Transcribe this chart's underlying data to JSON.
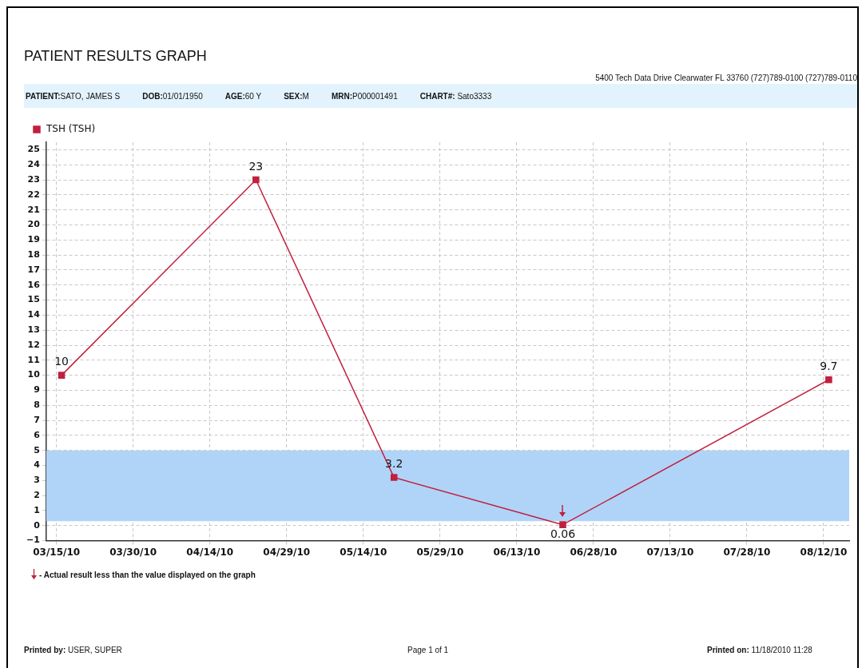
{
  "chart_data": {
    "type": "line",
    "title": "PATIENT RESULTS GRAPH",
    "x": [
      "2010-03-16",
      "2010-04-23",
      "2010-05-20",
      "2010-06-22",
      "2010-08-13"
    ],
    "series": [
      {
        "name": "TSH (TSH)",
        "color": "#c0203f",
        "values": [
          10,
          23,
          3.2,
          0.06,
          9.7
        ]
      }
    ],
    "xlim": [
      "2010-03-13",
      "2010-08-17"
    ],
    "xticks": [
      {
        "value": "2010-03-15",
        "label": "03/15/10"
      },
      {
        "value": "2010-03-30",
        "label": "03/30/10"
      },
      {
        "value": "2010-04-14",
        "label": "04/14/10"
      },
      {
        "value": "2010-04-29",
        "label": "04/29/10"
      },
      {
        "value": "2010-05-14",
        "label": "05/14/10"
      },
      {
        "value": "2010-05-29",
        "label": "05/29/10"
      },
      {
        "value": "2010-06-13",
        "label": "06/13/10"
      },
      {
        "value": "2010-06-28",
        "label": "06/28/10"
      },
      {
        "value": "2010-07-13",
        "label": "07/13/10"
      },
      {
        "value": "2010-07-28",
        "label": "07/28/10"
      },
      {
        "value": "2010-08-12",
        "label": "08/12/10"
      }
    ],
    "ylim": [
      -1,
      25.5
    ],
    "yticks": [
      -1,
      0,
      1,
      2,
      3,
      4,
      5,
      6,
      7,
      8,
      9,
      10,
      11,
      12,
      13,
      14,
      15,
      16,
      17,
      18,
      19,
      20,
      21,
      22,
      23,
      24,
      25
    ],
    "bands": [
      {
        "axis": "y",
        "from": 0.3,
        "to": 5,
        "color": "#b0d4f8"
      }
    ],
    "data_labels": true,
    "grid": true,
    "legend": "top left",
    "marker": "square",
    "line_style": "solid",
    "annotations": [
      "5400 Tech Data Drive Clearwater FL 33760 (727)789-0100 (727)789-0110",
      "PATIENT:SATO, JAMES S",
      "DOB:01/01/1950",
      "AGE:60 Y",
      "SEX:M",
      "MRN:P000001491",
      "CHART#: Sato3333",
      "- Actual result less than the value displayed on the graph",
      "Printed by: USER, SUPER",
      "Page 1 of 1",
      "Printed on: 11/18/2010 11:28"
    ]
  }
}
